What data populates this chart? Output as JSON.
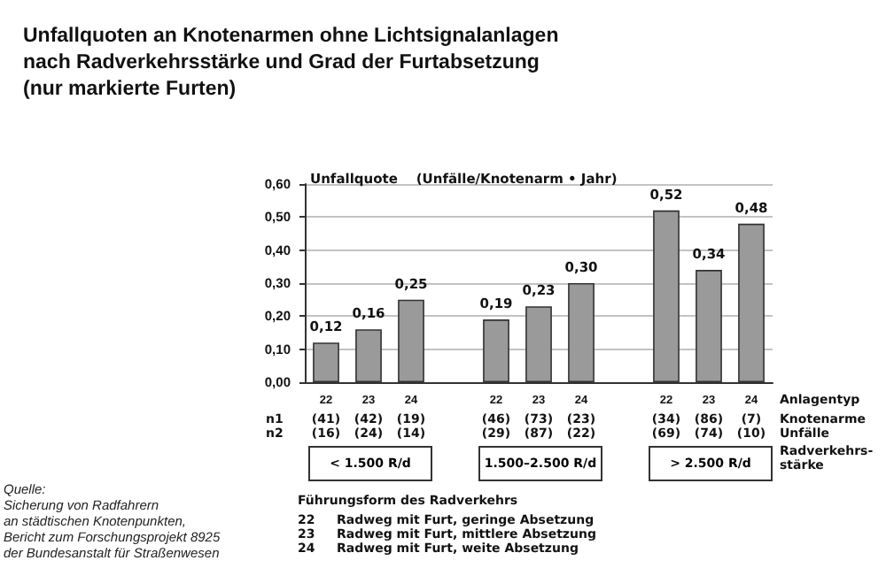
{
  "chart_data": {
    "type": "bar",
    "title": "Unfallquoten an Knotenarmen ohne Lichtsignalanlagen\nnach Radverkehrsstärke und Grad der Furtabsetzung\n(nur markierte Furten)",
    "ylabel": "Unfallquote    (Unfälle/Knotenarm • Jahr)",
    "categories": [
      "22",
      "23",
      "24",
      null,
      "22",
      "23",
      "24",
      null,
      "22",
      "23",
      "24"
    ],
    "values": [
      0.12,
      0.16,
      0.25,
      null,
      0.19,
      0.23,
      0.3,
      null,
      0.52,
      0.34,
      0.48
    ],
    "value_labels": [
      "0,12",
      "0,16",
      "0,25",
      null,
      "0,19",
      "0,23",
      "0,30",
      null,
      "0,52",
      "0,34",
      "0,48"
    ],
    "color": "#9a9a9a",
    "ylim": [
      0,
      0.6
    ],
    "yticks": [
      {
        "value": 0,
        "label": "0,00"
      },
      {
        "value": 0.1,
        "label": "0,10"
      },
      {
        "value": 0.2,
        "label": "0,20"
      },
      {
        "value": 0.3,
        "label": "0,30"
      },
      {
        "value": 0.4,
        "label": "0,40"
      },
      {
        "value": 0.5,
        "label": "0,50"
      },
      {
        "value": 0.6,
        "label": "0,60"
      }
    ],
    "grid": "y",
    "annotations": [
      "Anlagentyp",
      "Knotenarme",
      "Unfälle",
      "Radverkehrs-\nstärke",
      "n1",
      "n2",
      "(41)",
      "(42)",
      "(19)",
      "(46)",
      "(73)",
      "(23)",
      "(34)",
      "(86)",
      "(7)",
      "(16)",
      "(24)",
      "(14)",
      "(29)",
      "(87)",
      "(22)",
      "(69)",
      "(74)",
      "(10)",
      "< 1.500 R/d",
      "1.500–2.500 R/d",
      "> 2.500 R/d",
      "Führungsform des Radverkehrs",
      "22",
      "Radweg mit Furt, geringe Absetzung",
      "23",
      "Radweg mit Furt, mittlere Absetzung",
      "24",
      "Radweg mit Furt, weite Absetzung",
      "Quelle:\nSicherung von Radfahrern\nan städtischen Knotenpunkten,\nBericht zum Forschungsprojekt 8925\nder Bundesanstalt für Straßenwesen"
    ]
  }
}
